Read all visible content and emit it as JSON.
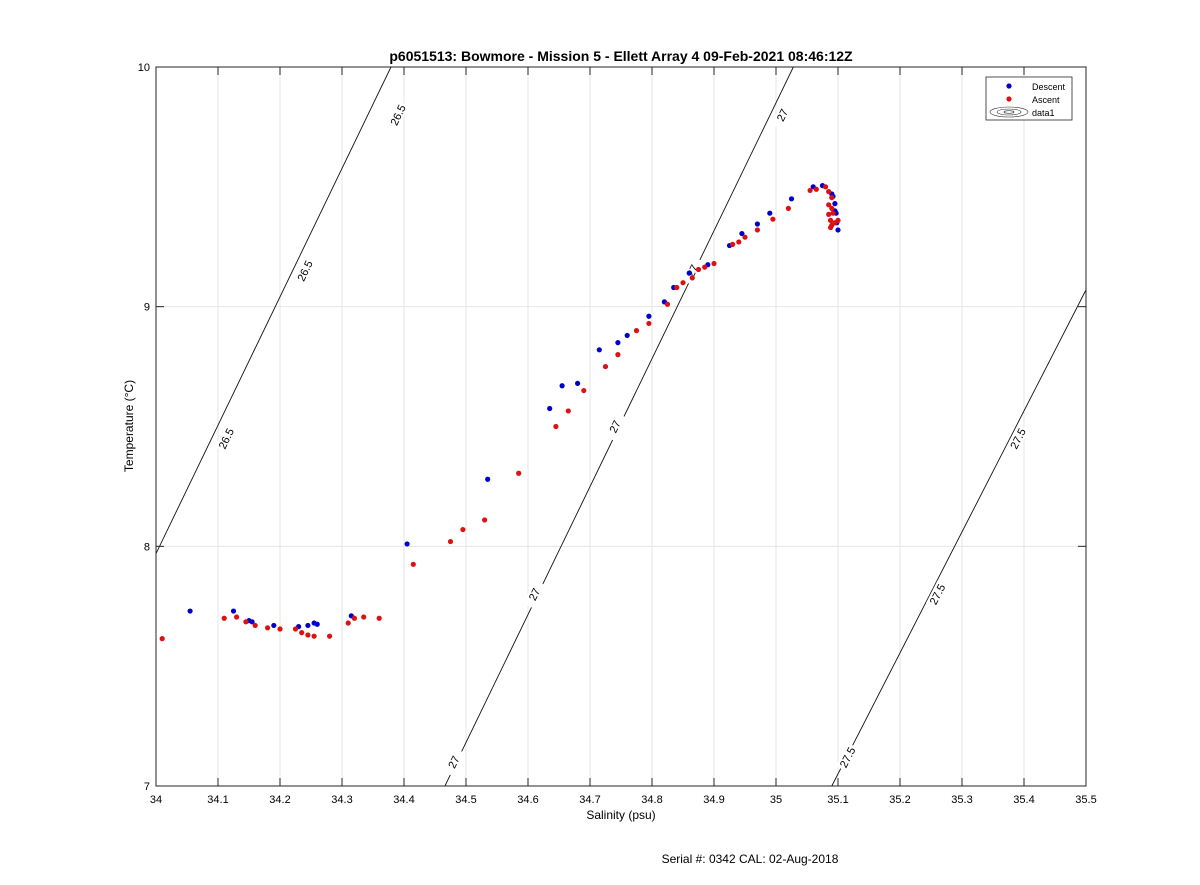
{
  "chart_data": {
    "type": "scatter",
    "title": "p6051513: Bowmore - Mission 5 - Ellett Array 4 09-Feb-2021 08:46:12Z",
    "xlabel": "Salinity (psu)",
    "ylabel": "Temperature (°C)",
    "xlim": [
      34,
      35.5
    ],
    "ylim": [
      7,
      10
    ],
    "x_ticks": [
      "34",
      "34.1",
      "34.2",
      "34.3",
      "34.4",
      "34.5",
      "34.6",
      "34.7",
      "34.8",
      "34.9",
      "35",
      "35.1",
      "35.2",
      "35.3",
      "35.4",
      "35.5"
    ],
    "y_ticks": [
      "7",
      "8",
      "9",
      "10"
    ],
    "grid": true,
    "legend_position": "top-right",
    "legend": [
      "Descent",
      "Ascent",
      "data1"
    ],
    "series": [
      {
        "name": "Descent",
        "color": "#0000cc",
        "points": [
          [
            34.055,
            7.73
          ],
          [
            34.125,
            7.73
          ],
          [
            34.15,
            7.69
          ],
          [
            34.155,
            7.685
          ],
          [
            34.19,
            7.67
          ],
          [
            34.23,
            7.665
          ],
          [
            34.245,
            7.67
          ],
          [
            34.255,
            7.68
          ],
          [
            34.26,
            7.675
          ],
          [
            34.315,
            7.71
          ],
          [
            34.405,
            8.01
          ],
          [
            34.535,
            8.28
          ],
          [
            34.635,
            8.575
          ],
          [
            34.655,
            8.67
          ],
          [
            34.68,
            8.68
          ],
          [
            34.715,
            8.82
          ],
          [
            34.745,
            8.85
          ],
          [
            34.76,
            8.88
          ],
          [
            34.795,
            8.96
          ],
          [
            34.82,
            9.02
          ],
          [
            34.835,
            9.08
          ],
          [
            34.86,
            9.14
          ],
          [
            34.89,
            9.175
          ],
          [
            34.925,
            9.255
          ],
          [
            34.945,
            9.305
          ],
          [
            34.97,
            9.345
          ],
          [
            34.99,
            9.39
          ],
          [
            35.025,
            9.45
          ],
          [
            35.06,
            9.5
          ],
          [
            35.075,
            9.505
          ],
          [
            35.09,
            9.47
          ],
          [
            35.095,
            9.43
          ],
          [
            35.097,
            9.39
          ],
          [
            35.098,
            9.35
          ],
          [
            35.1,
            9.32
          ],
          [
            35.095,
            9.4
          ],
          [
            35.092,
            9.46
          ]
        ]
      },
      {
        "name": "Ascent",
        "color": "#dd1111",
        "points": [
          [
            34.01,
            7.615
          ],
          [
            34.11,
            7.7
          ],
          [
            34.13,
            7.705
          ],
          [
            34.145,
            7.685
          ],
          [
            34.16,
            7.67
          ],
          [
            34.18,
            7.66
          ],
          [
            34.2,
            7.655
          ],
          [
            34.225,
            7.655
          ],
          [
            34.235,
            7.64
          ],
          [
            34.245,
            7.63
          ],
          [
            34.255,
            7.625
          ],
          [
            34.28,
            7.625
          ],
          [
            34.31,
            7.68
          ],
          [
            34.32,
            7.7
          ],
          [
            34.335,
            7.705
          ],
          [
            34.36,
            7.7
          ],
          [
            34.415,
            7.925
          ],
          [
            34.475,
            8.02
          ],
          [
            34.495,
            8.07
          ],
          [
            34.53,
            8.11
          ],
          [
            34.585,
            8.305
          ],
          [
            34.645,
            8.5
          ],
          [
            34.665,
            8.565
          ],
          [
            34.69,
            8.65
          ],
          [
            34.725,
            8.75
          ],
          [
            34.745,
            8.8
          ],
          [
            34.775,
            8.9
          ],
          [
            34.795,
            8.93
          ],
          [
            34.825,
            9.01
          ],
          [
            34.84,
            9.08
          ],
          [
            34.85,
            9.1
          ],
          [
            34.865,
            9.12
          ],
          [
            34.875,
            9.155
          ],
          [
            34.885,
            9.165
          ],
          [
            34.9,
            9.18
          ],
          [
            34.93,
            9.26
          ],
          [
            34.94,
            9.27
          ],
          [
            34.95,
            9.29
          ],
          [
            34.97,
            9.32
          ],
          [
            34.995,
            9.365
          ],
          [
            35.02,
            9.41
          ],
          [
            35.055,
            9.485
          ],
          [
            35.065,
            9.49
          ],
          [
            35.08,
            9.5
          ],
          [
            35.085,
            9.48
          ],
          [
            35.09,
            9.455
          ],
          [
            35.085,
            9.425
          ],
          [
            35.09,
            9.41
          ],
          [
            35.085,
            9.385
          ],
          [
            35.088,
            9.36
          ],
          [
            35.09,
            9.34
          ],
          [
            35.095,
            9.35
          ],
          [
            35.1,
            9.36
          ],
          [
            35.092,
            9.39
          ],
          [
            35.088,
            9.33
          ]
        ]
      }
    ],
    "density_contours": [
      {
        "value": "26.5",
        "points": [
          [
            33.959,
            7.75
          ],
          [
            34.379,
            10.0
          ]
        ],
        "label_positions": [
          [
            34.113,
            8.45
          ],
          [
            34.24,
            9.15
          ],
          [
            34.39,
            9.8
          ]
        ]
      },
      {
        "value": "27",
        "points": [
          [
            34.466,
            7.0
          ],
          [
            35.028,
            10.0
          ]
        ],
        "label_positions": [
          [
            34.48,
            7.1
          ],
          [
            34.61,
            7.8
          ],
          [
            34.74,
            8.5
          ],
          [
            34.865,
            9.15
          ],
          [
            35.01,
            9.8
          ]
        ]
      },
      {
        "value": "27.5",
        "points": [
          [
            35.09,
            7.0
          ],
          [
            35.5,
            9.07
          ]
        ],
        "label_positions": [
          [
            35.115,
            7.12
          ],
          [
            35.26,
            7.8
          ],
          [
            35.39,
            8.45
          ]
        ]
      }
    ]
  },
  "footer": "Serial #: 0342  CAL: 02-Aug-2018"
}
